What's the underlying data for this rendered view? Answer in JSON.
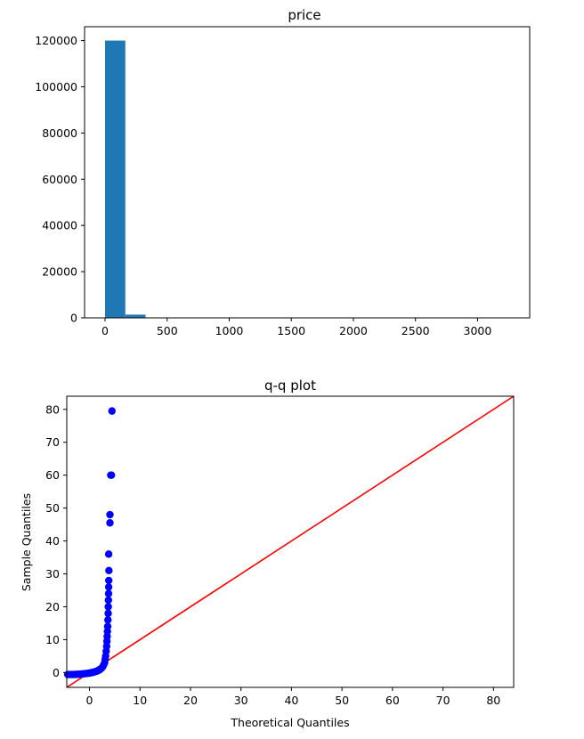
{
  "chart_data": [
    {
      "type": "bar",
      "title": "price",
      "xlabel": "",
      "ylabel": "",
      "xlim": [
        -165,
        3420
      ],
      "ylim": [
        0,
        126000
      ],
      "grid": false,
      "x_ticks": [
        0,
        500,
        1000,
        1500,
        2000,
        2500,
        3000
      ],
      "x_tick_labels": [
        "0",
        "500",
        "1000",
        "1500",
        "2000",
        "2500",
        "3000"
      ],
      "y_ticks": [
        0,
        20000,
        40000,
        60000,
        80000,
        100000,
        120000
      ],
      "y_tick_labels": [
        "0",
        "20000",
        "40000",
        "60000",
        "80000",
        "100000",
        "120000"
      ],
      "bin_edges": [
        0,
        163,
        326,
        489,
        652,
        815,
        978,
        1141,
        1304,
        1467,
        1630,
        1793,
        1956,
        2119,
        2282,
        2445,
        2608,
        2771,
        2934,
        3097,
        3260
      ],
      "values": [
        120000,
        1400,
        60,
        20,
        8,
        4,
        2,
        1,
        1,
        0,
        0,
        0,
        0,
        0,
        0,
        0,
        0,
        0,
        0,
        0
      ],
      "bar_color": "#1f77b4"
    },
    {
      "type": "scatter",
      "title": "q-q plot",
      "xlabel": "Theoretical Quantiles",
      "ylabel": "Sample Quantiles",
      "xlim": [
        -4.5,
        84
      ],
      "ylim": [
        -4.5,
        84
      ],
      "grid": false,
      "x_ticks": [
        0,
        10,
        20,
        30,
        40,
        50,
        60,
        70,
        80
      ],
      "x_tick_labels": [
        "0",
        "10",
        "20",
        "30",
        "40",
        "50",
        "60",
        "70",
        "80"
      ],
      "y_ticks": [
        0,
        10,
        20,
        30,
        40,
        50,
        60,
        70,
        80
      ],
      "y_tick_labels": [
        "0",
        "10",
        "20",
        "30",
        "40",
        "50",
        "60",
        "70",
        "80"
      ],
      "reference_line": {
        "from": [
          -4.5,
          -4.5
        ],
        "to": [
          84,
          84
        ],
        "color": "#ff0000"
      },
      "point_color": "#0000ff",
      "points": [
        [
          -4.3,
          -0.6
        ],
        [
          -4.0,
          -0.6
        ],
        [
          -3.7,
          -0.6
        ],
        [
          -3.4,
          -0.6
        ],
        [
          -3.1,
          -0.6
        ],
        [
          -2.8,
          -0.55
        ],
        [
          -2.5,
          -0.55
        ],
        [
          -2.2,
          -0.5
        ],
        [
          -1.9,
          -0.5
        ],
        [
          -1.6,
          -0.45
        ],
        [
          -1.3,
          -0.4
        ],
        [
          -1.0,
          -0.35
        ],
        [
          -0.7,
          -0.3
        ],
        [
          -0.4,
          -0.25
        ],
        [
          -0.1,
          -0.2
        ],
        [
          0.2,
          -0.1
        ],
        [
          0.5,
          0.0
        ],
        [
          0.8,
          0.1
        ],
        [
          1.1,
          0.25
        ],
        [
          1.4,
          0.4
        ],
        [
          1.7,
          0.6
        ],
        [
          2.0,
          0.85
        ],
        [
          2.3,
          1.2
        ],
        [
          2.6,
          1.7
        ],
        [
          2.8,
          2.3
        ],
        [
          3.0,
          3.0
        ],
        [
          3.1,
          4.0
        ],
        [
          3.2,
          5.0
        ],
        [
          3.3,
          6.5
        ],
        [
          3.4,
          8.0
        ],
        [
          3.45,
          9.5
        ],
        [
          3.5,
          11.0
        ],
        [
          3.55,
          12.5
        ],
        [
          3.6,
          14.0
        ],
        [
          3.65,
          16.0
        ],
        [
          3.7,
          18.0
        ],
        [
          3.72,
          20.0
        ],
        [
          3.75,
          22.0
        ],
        [
          3.78,
          24.0
        ],
        [
          3.8,
          26.0
        ],
        [
          3.82,
          28.0
        ],
        [
          3.85,
          31.0
        ],
        [
          3.8,
          36.0
        ],
        [
          4.05,
          45.5
        ],
        [
          4.05,
          48.0
        ],
        [
          4.2,
          60.0
        ],
        [
          4.35,
          60.0
        ],
        [
          4.45,
          79.5
        ]
      ]
    }
  ]
}
